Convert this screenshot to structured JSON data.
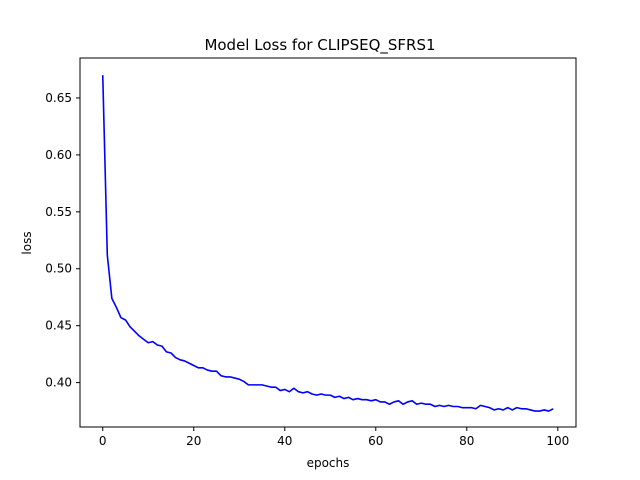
{
  "chart_data": {
    "type": "line",
    "title": "Model Loss for CLIPSEQ_SFRS1",
    "xlabel": "epochs",
    "ylabel": "loss",
    "xlim": [
      -5,
      104
    ],
    "ylim": [
      0.361,
      0.6851
    ],
    "xticks": [
      0,
      20,
      40,
      60,
      80,
      100
    ],
    "xtick_labels": [
      "0",
      "20",
      "40",
      "60",
      "80",
      "100"
    ],
    "yticks": [
      0.4,
      0.45,
      0.5,
      0.55,
      0.6,
      0.65
    ],
    "ytick_labels": [
      "0.40",
      "0.45",
      "0.50",
      "0.55",
      "0.60",
      "0.65"
    ],
    "grid": false,
    "series": [
      {
        "color": "#0000ff",
        "x": [
          0,
          1,
          2,
          3,
          4,
          5,
          6,
          7,
          8,
          9,
          10,
          11,
          12,
          13,
          14,
          15,
          16,
          17,
          18,
          19,
          20,
          21,
          22,
          23,
          24,
          25,
          26,
          27,
          28,
          29,
          30,
          31,
          32,
          33,
          34,
          35,
          36,
          37,
          38,
          39,
          40,
          41,
          42,
          43,
          44,
          45,
          46,
          47,
          48,
          49,
          50,
          51,
          52,
          53,
          54,
          55,
          56,
          57,
          58,
          59,
          60,
          61,
          62,
          63,
          64,
          65,
          66,
          67,
          68,
          69,
          70,
          71,
          72,
          73,
          74,
          75,
          76,
          77,
          78,
          79,
          80,
          81,
          82,
          83,
          84,
          85,
          86,
          87,
          88,
          89,
          90,
          91,
          92,
          93,
          94,
          95,
          96,
          97,
          98,
          99
        ],
        "values": [
          0.67,
          0.512,
          0.474,
          0.466,
          0.457,
          0.455,
          0.449,
          0.445,
          0.441,
          0.438,
          0.435,
          0.436,
          0.433,
          0.432,
          0.427,
          0.426,
          0.422,
          0.42,
          0.419,
          0.417,
          0.415,
          0.413,
          0.413,
          0.411,
          0.41,
          0.41,
          0.406,
          0.405,
          0.405,
          0.404,
          0.403,
          0.401,
          0.398,
          0.398,
          0.398,
          0.398,
          0.397,
          0.396,
          0.396,
          0.393,
          0.394,
          0.392,
          0.395,
          0.392,
          0.391,
          0.392,
          0.39,
          0.389,
          0.39,
          0.389,
          0.389,
          0.387,
          0.388,
          0.386,
          0.387,
          0.385,
          0.386,
          0.385,
          0.385,
          0.384,
          0.385,
          0.383,
          0.383,
          0.381,
          0.383,
          0.384,
          0.381,
          0.383,
          0.384,
          0.381,
          0.382,
          0.381,
          0.381,
          0.379,
          0.38,
          0.379,
          0.38,
          0.379,
          0.379,
          0.378,
          0.378,
          0.378,
          0.377,
          0.38,
          0.379,
          0.378,
          0.376,
          0.377,
          0.376,
          0.378,
          0.376,
          0.378,
          0.377,
          0.377,
          0.376,
          0.375,
          0.375,
          0.376,
          0.375,
          0.377
        ]
      }
    ]
  }
}
